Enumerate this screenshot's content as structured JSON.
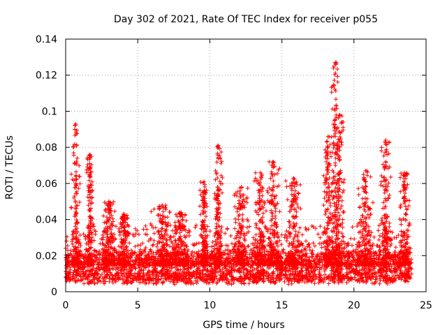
{
  "chart_data": {
    "type": "scatter",
    "title": "Day 302 of 2021, Rate Of TEC Index for receiver p055",
    "xlabel": "GPS time / hours",
    "ylabel": "ROTI / TECUs",
    "xlim": [
      0,
      25
    ],
    "ylim": [
      0,
      0.14
    ],
    "xticks": [
      0,
      5,
      10,
      15,
      20,
      25
    ],
    "xtick_labels": [
      "0",
      "5",
      "10",
      "15",
      "20",
      "25"
    ],
    "yticks": [
      0,
      0.02,
      0.04,
      0.06,
      0.08,
      0.1,
      0.12,
      0.14
    ],
    "ytick_labels": [
      "0",
      "0.02",
      "0.04",
      "0.06",
      "0.08",
      "0.1",
      "0.12",
      "0.14"
    ],
    "grid": true,
    "marker": "+",
    "color": "#ff0000",
    "x_data_range": [
      0,
      24
    ],
    "baseline_range": [
      0.004,
      0.02
    ],
    "bursts": [
      {
        "center": 0.7,
        "width": 0.35,
        "peak": 0.093
      },
      {
        "center": 1.7,
        "width": 0.3,
        "peak": 0.076
      },
      {
        "center": 3.0,
        "width": 0.5,
        "peak": 0.05
      },
      {
        "center": 4.0,
        "width": 0.4,
        "peak": 0.043
      },
      {
        "center": 6.7,
        "width": 0.9,
        "peak": 0.048
      },
      {
        "center": 8.0,
        "width": 0.6,
        "peak": 0.044
      },
      {
        "center": 9.6,
        "width": 0.3,
        "peak": 0.061
      },
      {
        "center": 10.6,
        "width": 0.35,
        "peak": 0.081
      },
      {
        "center": 12.2,
        "width": 0.6,
        "peak": 0.058
      },
      {
        "center": 13.5,
        "width": 0.5,
        "peak": 0.066
      },
      {
        "center": 14.4,
        "width": 0.5,
        "peak": 0.072
      },
      {
        "center": 15.8,
        "width": 0.6,
        "peak": 0.063
      },
      {
        "center": 18.2,
        "width": 0.35,
        "peak": 0.086
      },
      {
        "center": 18.7,
        "width": 0.35,
        "peak": 0.127
      },
      {
        "center": 19.0,
        "width": 0.4,
        "peak": 0.098
      },
      {
        "center": 20.8,
        "width": 0.6,
        "peak": 0.067
      },
      {
        "center": 22.2,
        "width": 0.4,
        "peak": 0.084
      },
      {
        "center": 23.5,
        "width": 0.4,
        "peak": 0.066
      }
    ]
  }
}
